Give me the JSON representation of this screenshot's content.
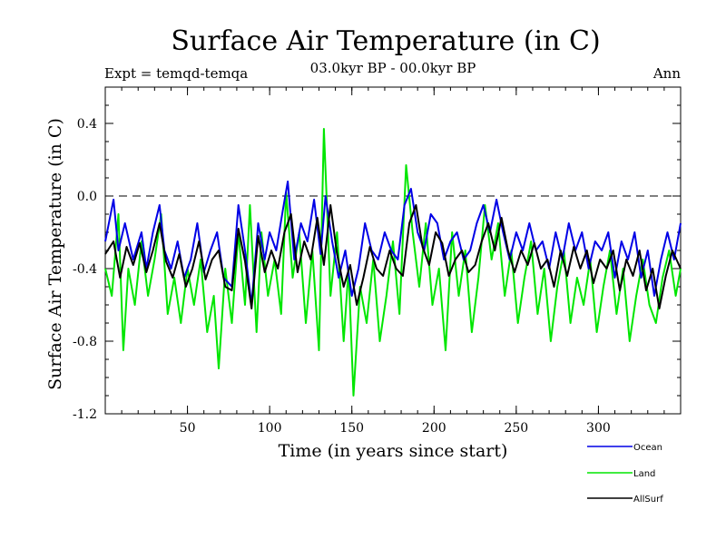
{
  "chart_data": {
    "type": "line",
    "title": "Surface Air Temperature (in C)",
    "subtitle_left": "Expt = temqd-temqa",
    "subtitle_center": "03.0kyr BP - 00.0kyr BP",
    "subtitle_right": "Ann",
    "xlabel": "Time (in years since start)",
    "ylabel": "Surface Air Temperature (in C)",
    "xlim": [
      0,
      350
    ],
    "ylim": [
      -1.2,
      0.6
    ],
    "x_ticks": [
      50,
      100,
      150,
      200,
      250,
      300
    ],
    "x_tick_labels": [
      "50",
      "100",
      "150",
      "200",
      "250",
      "300"
    ],
    "y_ticks": [
      -1.2,
      -0.8,
      -0.4,
      0.0,
      0.4
    ],
    "y_tick_labels": [
      "-1.2",
      "-0.8",
      "-0.4",
      "0.0",
      "0.4"
    ],
    "reference_line": {
      "y": 0.0,
      "style": "dashed"
    },
    "series": [
      {
        "name": "Ocean",
        "color": "#0000e6",
        "x": [
          0,
          5,
          8,
          12,
          17,
          22,
          25,
          29,
          33,
          36,
          40,
          44,
          48,
          52,
          56,
          60,
          64,
          68,
          72,
          77,
          81,
          85,
          89,
          93,
          97,
          100,
          104,
          108,
          111,
          115,
          119,
          123,
          127,
          131,
          134,
          138,
          142,
          146,
          150,
          154,
          158,
          162,
          166,
          170,
          174,
          178,
          182,
          186,
          190,
          194,
          198,
          202,
          206,
          210,
          214,
          218,
          222,
          226,
          230,
          234,
          238,
          242,
          246,
          250,
          254,
          258,
          262,
          266,
          270,
          274,
          278,
          282,
          286,
          290,
          294,
          298,
          302,
          306,
          310,
          314,
          318,
          322,
          326,
          330,
          334,
          338,
          342,
          346,
          350
        ],
        "y": [
          -0.25,
          -0.02,
          -0.3,
          -0.15,
          -0.35,
          -0.2,
          -0.4,
          -0.2,
          -0.05,
          -0.3,
          -0.4,
          -0.25,
          -0.45,
          -0.35,
          -0.15,
          -0.42,
          -0.3,
          -0.2,
          -0.45,
          -0.5,
          -0.05,
          -0.3,
          -0.6,
          -0.15,
          -0.35,
          -0.2,
          -0.3,
          -0.08,
          0.08,
          -0.35,
          -0.15,
          -0.25,
          -0.02,
          -0.32,
          0.0,
          -0.25,
          -0.45,
          -0.3,
          -0.55,
          -0.4,
          -0.15,
          -0.3,
          -0.35,
          -0.2,
          -0.3,
          -0.35,
          -0.05,
          0.04,
          -0.2,
          -0.3,
          -0.1,
          -0.15,
          -0.35,
          -0.25,
          -0.2,
          -0.35,
          -0.3,
          -0.15,
          -0.05,
          -0.2,
          -0.02,
          -0.2,
          -0.35,
          -0.2,
          -0.3,
          -0.15,
          -0.3,
          -0.25,
          -0.4,
          -0.2,
          -0.35,
          -0.15,
          -0.3,
          -0.2,
          -0.4,
          -0.25,
          -0.3,
          -0.2,
          -0.45,
          -0.25,
          -0.35,
          -0.2,
          -0.45,
          -0.3,
          -0.55,
          -0.35,
          -0.2,
          -0.35,
          -0.15
        ]
      },
      {
        "name": "Land",
        "color": "#00e600",
        "x": [
          0,
          4,
          8,
          11,
          14,
          18,
          22,
          26,
          30,
          34,
          38,
          42,
          46,
          50,
          54,
          58,
          62,
          66,
          69,
          73,
          77,
          81,
          85,
          88,
          92,
          95,
          99,
          103,
          107,
          110,
          114,
          118,
          122,
          126,
          130,
          133,
          137,
          141,
          145,
          148,
          151,
          155,
          159,
          163,
          167,
          171,
          175,
          179,
          183,
          187,
          191,
          195,
          199,
          203,
          207,
          211,
          215,
          219,
          223,
          227,
          231,
          235,
          239,
          243,
          247,
          251,
          255,
          259,
          263,
          267,
          271,
          275,
          279,
          283,
          287,
          291,
          295,
          299,
          303,
          307,
          311,
          315,
          319,
          323,
          327,
          331,
          335,
          339,
          343,
          347,
          350
        ],
        "y": [
          -0.4,
          -0.55,
          -0.1,
          -0.85,
          -0.4,
          -0.6,
          -0.25,
          -0.55,
          -0.35,
          -0.1,
          -0.65,
          -0.45,
          -0.7,
          -0.4,
          -0.6,
          -0.35,
          -0.75,
          -0.55,
          -0.95,
          -0.4,
          -0.7,
          -0.2,
          -0.6,
          -0.05,
          -0.75,
          -0.2,
          -0.55,
          -0.35,
          -0.65,
          0.02,
          -0.45,
          -0.2,
          -0.7,
          -0.3,
          -0.85,
          0.37,
          -0.55,
          -0.2,
          -0.8,
          -0.4,
          -1.1,
          -0.5,
          -0.7,
          -0.35,
          -0.8,
          -0.55,
          -0.25,
          -0.65,
          0.17,
          -0.2,
          -0.5,
          -0.15,
          -0.6,
          -0.4,
          -0.85,
          -0.2,
          -0.55,
          -0.3,
          -0.75,
          -0.45,
          -0.05,
          -0.35,
          -0.15,
          -0.55,
          -0.3,
          -0.7,
          -0.45,
          -0.25,
          -0.65,
          -0.4,
          -0.8,
          -0.5,
          -0.3,
          -0.7,
          -0.45,
          -0.6,
          -0.35,
          -0.75,
          -0.5,
          -0.3,
          -0.65,
          -0.4,
          -0.8,
          -0.55,
          -0.35,
          -0.6,
          -0.7,
          -0.45,
          -0.3,
          -0.55,
          -0.4
        ]
      },
      {
        "name": "AllSurf",
        "color": "#000000",
        "x": [
          0,
          5,
          9,
          13,
          17,
          21,
          25,
          29,
          33,
          37,
          41,
          45,
          49,
          53,
          57,
          61,
          65,
          69,
          73,
          77,
          81,
          85,
          89,
          93,
          97,
          101,
          105,
          109,
          113,
          117,
          121,
          125,
          129,
          133,
          137,
          141,
          145,
          149,
          153,
          157,
          161,
          165,
          169,
          173,
          177,
          181,
          185,
          189,
          193,
          197,
          201,
          205,
          209,
          213,
          217,
          221,
          225,
          229,
          233,
          237,
          241,
          245,
          249,
          253,
          257,
          261,
          265,
          269,
          273,
          277,
          281,
          285,
          289,
          293,
          297,
          301,
          305,
          309,
          313,
          317,
          321,
          325,
          329,
          333,
          337,
          341,
          345,
          350
        ],
        "y": [
          -0.32,
          -0.25,
          -0.45,
          -0.28,
          -0.38,
          -0.26,
          -0.42,
          -0.3,
          -0.15,
          -0.36,
          -0.45,
          -0.32,
          -0.5,
          -0.4,
          -0.25,
          -0.46,
          -0.35,
          -0.3,
          -0.5,
          -0.52,
          -0.18,
          -0.36,
          -0.62,
          -0.22,
          -0.42,
          -0.3,
          -0.4,
          -0.2,
          -0.1,
          -0.42,
          -0.25,
          -0.35,
          -0.12,
          -0.38,
          -0.05,
          -0.32,
          -0.5,
          -0.38,
          -0.6,
          -0.45,
          -0.28,
          -0.4,
          -0.44,
          -0.3,
          -0.4,
          -0.44,
          -0.15,
          -0.05,
          -0.28,
          -0.38,
          -0.2,
          -0.26,
          -0.44,
          -0.35,
          -0.3,
          -0.42,
          -0.38,
          -0.25,
          -0.15,
          -0.3,
          -0.12,
          -0.3,
          -0.42,
          -0.3,
          -0.38,
          -0.26,
          -0.4,
          -0.35,
          -0.5,
          -0.3,
          -0.44,
          -0.28,
          -0.4,
          -0.3,
          -0.48,
          -0.35,
          -0.4,
          -0.3,
          -0.52,
          -0.35,
          -0.44,
          -0.3,
          -0.52,
          -0.4,
          -0.62,
          -0.44,
          -0.3,
          -0.4
        ]
      }
    ],
    "legend": {
      "placement": "bottom-right",
      "entries": [
        "Ocean",
        "Land",
        "AllSurf"
      ]
    }
  }
}
